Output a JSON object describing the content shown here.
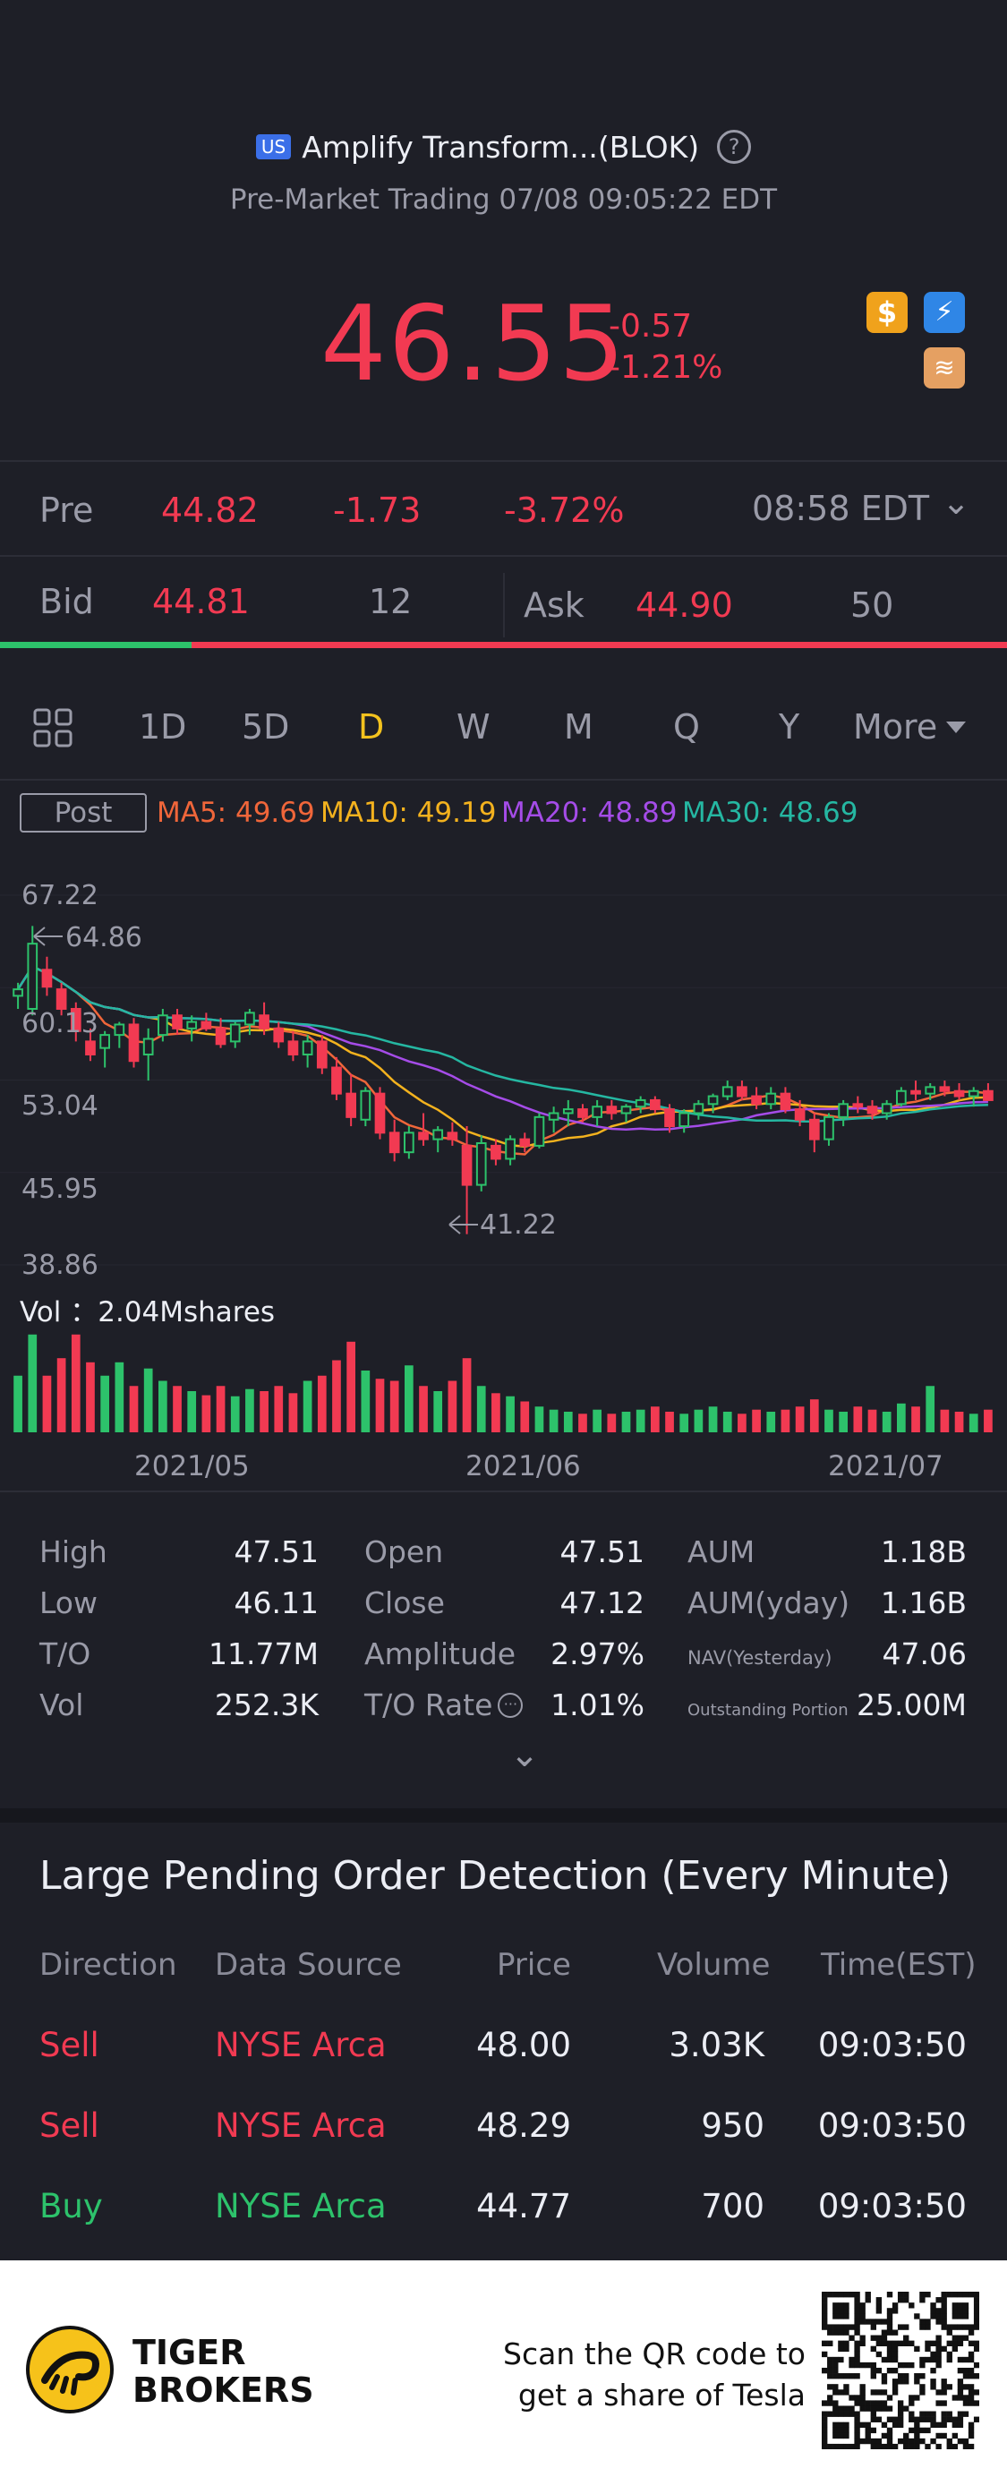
{
  "header": {
    "market_badge": "US",
    "title": "Amplify Transform...(BLOK)",
    "help_icon": "?",
    "subtitle": "Pre-Market Trading 07/08 09:05:22 EDT",
    "price": "46.55",
    "change": "-0.57",
    "change_pct": "-1.21%",
    "icon_dollar": "$",
    "icon_flash": "⚡",
    "icon_stack": "≋"
  },
  "pre": {
    "label": "Pre",
    "price": "44.82",
    "change": "-1.73",
    "change_pct": "-3.72%",
    "time": "08:58 EDT",
    "chevron": "⌄"
  },
  "bid": {
    "label": "Bid",
    "price": "44.81",
    "size": "12"
  },
  "ask": {
    "label": "Ask",
    "price": "44.90",
    "size": "50"
  },
  "bid_ratio": 0.19,
  "tabs": [
    "1D",
    "5D",
    "D",
    "W",
    "M",
    "Q",
    "Y"
  ],
  "tab_more": "More",
  "active_tab": "D",
  "post_label": "Post",
  "ma": {
    "ma5": "MA5: 49.69",
    "ma10": "MA10: 49.19",
    "ma20": "MA20: 48.89",
    "ma30": "MA30: 48.69"
  },
  "colors": {
    "up": "#2dc26b",
    "down": "#f23a52",
    "ma5": "#f0663a",
    "ma10": "#f3b21e",
    "ma20": "#a54ce8",
    "ma30": "#25b7a2"
  },
  "chart_data": {
    "type": "candlestick",
    "y_ticks": [
      "67.22",
      "60.13",
      "53.04",
      "45.95",
      "38.86"
    ],
    "ylim": [
      38.86,
      67.22
    ],
    "high_marker": "64.86",
    "low_marker": "41.22",
    "volume_label": "Vol ：2.04Mshares",
    "x_labels": [
      "2021/05",
      "2021/06",
      "2021/07"
    ],
    "candles": [
      [
        59.5,
        60.5,
        58.5,
        60.0
      ],
      [
        58.5,
        64.86,
        58.0,
        63.5
      ],
      [
        61.5,
        62.5,
        59.5,
        60.2
      ],
      [
        60.0,
        60.5,
        58.0,
        58.5
      ],
      [
        58.5,
        59.0,
        56.0,
        56.8
      ],
      [
        56.0,
        57.0,
        54.5,
        55.0
      ],
      [
        55.5,
        56.8,
        54.0,
        56.5
      ],
      [
        56.5,
        57.5,
        55.5,
        57.3
      ],
      [
        57.3,
        57.8,
        54.0,
        54.5
      ],
      [
        55.0,
        57.0,
        53.0,
        56.2
      ],
      [
        56.5,
        58.5,
        56.0,
        58.0
      ],
      [
        58.0,
        58.5,
        56.5,
        57.0
      ],
      [
        57.0,
        58.0,
        56.0,
        57.5
      ],
      [
        57.5,
        58.2,
        56.8,
        57.0
      ],
      [
        57.0,
        57.8,
        55.5,
        55.8
      ],
      [
        56.0,
        57.5,
        55.5,
        57.3
      ],
      [
        57.3,
        58.5,
        56.5,
        58.2
      ],
      [
        58.0,
        59.0,
        56.5,
        57.0
      ],
      [
        57.0,
        57.5,
        55.5,
        56.0
      ],
      [
        56.0,
        56.8,
        54.5,
        55.0
      ],
      [
        55.0,
        56.5,
        54.0,
        56.0
      ],
      [
        56.0,
        56.5,
        53.5,
        54.0
      ],
      [
        54.0,
        54.8,
        51.5,
        52.0
      ],
      [
        52.0,
        53.5,
        49.5,
        50.2
      ],
      [
        50.0,
        52.5,
        49.5,
        52.2
      ],
      [
        52.0,
        52.5,
        48.5,
        49.0
      ],
      [
        49.0,
        50.0,
        46.8,
        47.5
      ],
      [
        47.5,
        49.5,
        47.0,
        49.0
      ],
      [
        49.0,
        50.5,
        48.0,
        48.5
      ],
      [
        48.5,
        49.5,
        47.5,
        49.2
      ],
      [
        49.0,
        49.8,
        48.0,
        48.5
      ],
      [
        48.0,
        49.5,
        41.22,
        45.0
      ],
      [
        45.0,
        48.8,
        44.5,
        48.2
      ],
      [
        48.0,
        48.5,
        46.5,
        47.0
      ],
      [
        47.0,
        48.8,
        46.5,
        48.5
      ],
      [
        48.5,
        49.0,
        47.5,
        48.0
      ],
      [
        48.0,
        50.5,
        47.8,
        50.2
      ],
      [
        50.0,
        51.0,
        49.0,
        50.5
      ],
      [
        50.5,
        51.5,
        49.5,
        50.8
      ],
      [
        50.8,
        51.2,
        49.8,
        50.2
      ],
      [
        50.2,
        51.5,
        49.5,
        51.0
      ],
      [
        51.0,
        51.5,
        50.0,
        50.5
      ],
      [
        50.5,
        51.2,
        49.8,
        51.0
      ],
      [
        51.0,
        51.8,
        50.5,
        51.5
      ],
      [
        51.5,
        51.8,
        50.5,
        50.8
      ],
      [
        50.8,
        51.2,
        49.0,
        49.5
      ],
      [
        49.5,
        50.8,
        49.0,
        50.5
      ],
      [
        50.5,
        51.5,
        50.0,
        51.2
      ],
      [
        51.2,
        52.0,
        50.5,
        51.8
      ],
      [
        51.8,
        53.0,
        51.5,
        52.5
      ],
      [
        52.5,
        53.0,
        51.5,
        51.8
      ],
      [
        51.8,
        52.5,
        50.8,
        51.2
      ],
      [
        51.2,
        52.5,
        50.8,
        52.0
      ],
      [
        52.0,
        52.5,
        50.5,
        50.8
      ],
      [
        50.8,
        51.5,
        49.5,
        50.0
      ],
      [
        50.0,
        50.5,
        47.5,
        48.5
      ],
      [
        48.5,
        50.5,
        48.0,
        50.2
      ],
      [
        50.2,
        51.5,
        49.5,
        51.2
      ],
      [
        51.2,
        51.8,
        50.5,
        51.0
      ],
      [
        51.0,
        51.5,
        50.0,
        50.5
      ],
      [
        50.5,
        51.5,
        50.0,
        51.2
      ],
      [
        51.2,
        52.5,
        51.0,
        52.2
      ],
      [
        52.2,
        53.0,
        51.5,
        52.0
      ],
      [
        52.0,
        52.8,
        51.5,
        52.5
      ],
      [
        52.5,
        53.0,
        51.8,
        52.2
      ],
      [
        52.2,
        52.8,
        51.5,
        51.8
      ],
      [
        51.8,
        52.5,
        51.0,
        52.2
      ],
      [
        52.2,
        52.8,
        51.5,
        51.5
      ]
    ],
    "volumes": [
      0.55,
      0.95,
      0.55,
      0.72,
      0.95,
      0.68,
      0.55,
      0.68,
      0.45,
      0.62,
      0.5,
      0.45,
      0.4,
      0.36,
      0.45,
      0.35,
      0.42,
      0.4,
      0.45,
      0.38,
      0.5,
      0.55,
      0.7,
      0.88,
      0.6,
      0.52,
      0.5,
      0.65,
      0.45,
      0.4,
      0.5,
      0.72,
      0.45,
      0.38,
      0.35,
      0.3,
      0.25,
      0.22,
      0.2,
      0.18,
      0.22,
      0.18,
      0.2,
      0.22,
      0.25,
      0.2,
      0.18,
      0.22,
      0.25,
      0.2,
      0.18,
      0.22,
      0.2,
      0.22,
      0.25,
      0.32,
      0.22,
      0.2,
      0.25,
      0.22,
      0.2,
      0.28,
      0.25,
      0.45,
      0.22,
      0.2,
      0.18,
      0.22
    ]
  },
  "stats": [
    [
      {
        "label": "High",
        "value": "47.51"
      },
      {
        "label": "Open",
        "value": "47.51"
      },
      {
        "label": "AUM",
        "value": "1.18B"
      }
    ],
    [
      {
        "label": "Low",
        "value": "46.11"
      },
      {
        "label": "Close",
        "value": "47.12"
      },
      {
        "label": "AUM(yday)",
        "value": "1.16B"
      }
    ],
    [
      {
        "label": "T/O",
        "value": "11.77M"
      },
      {
        "label": "Amplitude",
        "value": "2.97%"
      },
      {
        "label": "NAV(Yesterday)",
        "value": "47.06"
      }
    ],
    [
      {
        "label": "Vol",
        "value": "252.3K"
      },
      {
        "label": "T/O Rate",
        "value": "1.01%"
      },
      {
        "label": "Outstanding Portion",
        "value": "25.00M"
      }
    ]
  ],
  "expand_icon": "⌄",
  "orders": {
    "title": "Large Pending Order Detection (Every Minute)",
    "headers": [
      "Direction",
      "Data Source",
      "Price",
      "Volume",
      "Time(EST)"
    ],
    "rows": [
      {
        "direction": "Sell",
        "source": "NYSE Arca",
        "price": "48.00",
        "volume": "3.03K",
        "time": "09:03:50"
      },
      {
        "direction": "Sell",
        "source": "NYSE Arca",
        "price": "48.29",
        "volume": "950",
        "time": "09:03:50"
      },
      {
        "direction": "Buy",
        "source": "NYSE Arca",
        "price": "44.77",
        "volume": "700",
        "time": "09:03:50"
      }
    ]
  },
  "footer": {
    "brand_line1": "TIGER",
    "brand_line2": "BROKERS",
    "promo_line1": "Scan the QR code to",
    "promo_line2": "get a share of Tesla"
  }
}
